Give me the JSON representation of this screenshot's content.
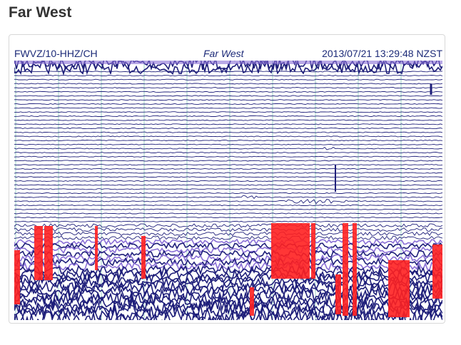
{
  "page": {
    "title": "Far West"
  },
  "seismogram": {
    "channel": "FWVZ/10-HHZ/CH",
    "station": "Far West",
    "timestamp": "2013/07/21 13:29:48 NZST"
  },
  "colors": {
    "title": "#333333",
    "header_text": "#1c2a78",
    "trace_dark": "#1f1f7a",
    "trace_light": "#8a6fd6",
    "event_red": "#ff2020",
    "grid_line": "#9fd3c7"
  }
}
